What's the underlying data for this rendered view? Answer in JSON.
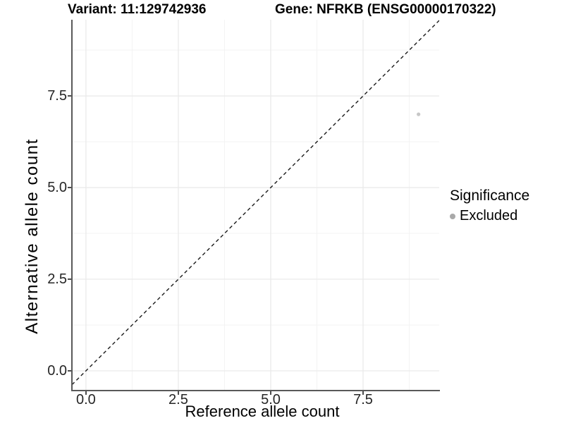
{
  "titles": {
    "variant": "Variant: 11:129742936",
    "gene": "Gene: NFRKB (ENSG00000170322)"
  },
  "colors": {
    "background": "#FFFFFF",
    "grid_major": "#EAEAEA",
    "grid_minor": "#F3F3F3",
    "axis_line": "#595959",
    "tick_mark": "#4D4D4D",
    "tick_text": "#262626",
    "title_text": "#000000"
  },
  "chart_data": {
    "type": "scatter",
    "title_left": "Variant: 11:129742936",
    "title_right": "Gene: NFRKB (ENSG00000170322)",
    "x_axis": {
      "label": "Reference allele count",
      "ticks": [
        0,
        2.5,
        5.0,
        7.5
      ],
      "tick_labels": [
        "0.0",
        "2.5",
        "5.0",
        "7.5"
      ],
      "minor_ticks": [
        1.25,
        3.75,
        6.25,
        8.75
      ],
      "range": [
        -0.38,
        9.56
      ],
      "grid": true
    },
    "y_axis": {
      "label": "Alternative allele count",
      "ticks": [
        0,
        2.5,
        5.0,
        7.5
      ],
      "tick_labels": [
        "0.0",
        "2.5",
        "5.0",
        "7.5"
      ],
      "minor_ticks": [
        1.25,
        3.75,
        6.25,
        8.75
      ],
      "range": [
        -0.52,
        9.58
      ],
      "grid": true
    },
    "series": [
      {
        "name": "Excluded",
        "color": "#C7C7C7",
        "point_radius": 2.6,
        "points": [
          {
            "x": 9,
            "y": 7
          }
        ]
      }
    ],
    "reference_line": {
      "kind": "identity",
      "equation": "y = x",
      "style": "dashed",
      "color": "#1A1A1A"
    },
    "legend": {
      "title": "Significance",
      "position": "right",
      "entries": [
        {
          "label": "Excluded",
          "swatch_color": "#A9A9A9"
        }
      ]
    }
  }
}
